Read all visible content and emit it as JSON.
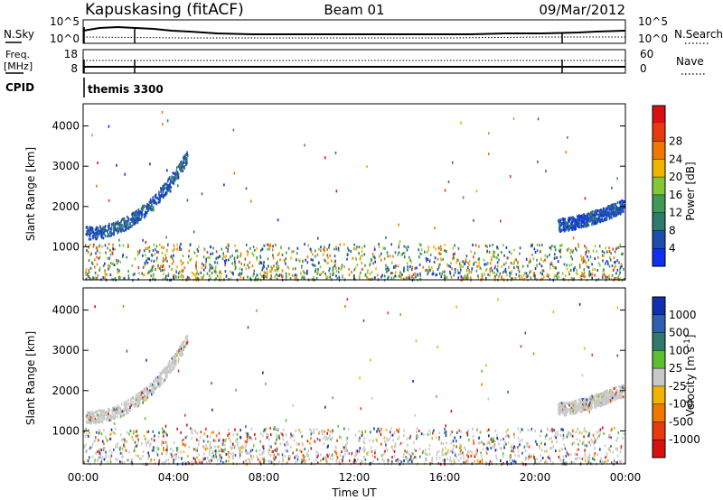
{
  "header": {
    "station": "Kapuskasing (fitACF)",
    "beam": "Beam 01",
    "date": "09/Mar/2012"
  },
  "summary_panels": {
    "noise": {
      "left_label": "N.Sky",
      "right_label": "N.Search",
      "left_ticks": [
        "10^5",
        "10^0"
      ],
      "right_ticks": [
        "10^5",
        "10^0"
      ]
    },
    "frequency": {
      "left_label_1": "Freq.",
      "left_label_2": "[MHz]",
      "left_ticks": [
        "18",
        "8"
      ],
      "right_label": "Nave",
      "right_ticks": [
        "60",
        "0"
      ]
    },
    "cpid": {
      "label": "CPID",
      "program": "themis 3300"
    }
  },
  "chart_data": [
    {
      "type": "heatmap",
      "title": "Power",
      "ylabel": "Slant Range [km]",
      "xlabel": "",
      "xlim": [
        0,
        24
      ],
      "ylim": [
        180,
        4550
      ],
      "ytick_labels": [
        "1000",
        "2000",
        "3000",
        "4000"
      ],
      "yticks": [
        1000,
        2000,
        3000,
        4000
      ],
      "colorbar": {
        "label": "Power [dB]",
        "range": [
          0,
          32
        ],
        "tick_labels": [
          "4",
          "8",
          "12",
          "16",
          "20",
          "24",
          "28"
        ],
        "tick_values": [
          4,
          8,
          12,
          16,
          20,
          24,
          28
        ],
        "colors": [
          "#1030f0",
          "#1f4fae",
          "#2f7a6c",
          "#3e9a54",
          "#86c63a",
          "#f0b400",
          "#f07800",
          "#e83a10",
          "#d81010"
        ]
      },
      "features": [
        {
          "name": "ionospheric_scatter_morning",
          "x_range": [
            0.1,
            4.6
          ],
          "slant_km_start": 1300,
          "slant_km_end": 3200,
          "typical_power_db": 6
        },
        {
          "name": "ionospheric_scatter_evening",
          "x_range": [
            21.0,
            24.0
          ],
          "slant_km_start": 1500,
          "slant_km_end": 2000,
          "typical_power_db": 5
        },
        {
          "name": "ground_scatter_band",
          "x_range": [
            0.0,
            24.0
          ],
          "slant_km_range": [
            200,
            1100
          ],
          "typical_power_db": 14
        }
      ]
    },
    {
      "type": "heatmap",
      "title": "Velocity",
      "ylabel": "Slant Range [km]",
      "xlabel": "Time UT",
      "xlim": [
        0,
        24
      ],
      "ylim": [
        180,
        4550
      ],
      "ytick_labels": [
        "1000",
        "2000",
        "3000",
        "4000"
      ],
      "yticks": [
        1000,
        2000,
        3000,
        4000
      ],
      "colorbar": {
        "label": "Velocity [m s^-1]",
        "tick_labels": [
          "1000",
          "500",
          "100",
          "25",
          "-25",
          "-100",
          "-500",
          "-1000"
        ],
        "colors": [
          "#1030b0",
          "#2f5fae",
          "#2f7a6c",
          "#5cc030",
          "#c8c8c8",
          "#f0b400",
          "#f07800",
          "#e83a10",
          "#d81010"
        ],
        "ground_scatter_color": "#c8c8c8"
      },
      "features": [
        {
          "name": "ground_scatter_morning",
          "x_range": [
            0.1,
            4.6
          ],
          "slant_km_start": 1300,
          "slant_km_end": 3200,
          "typical_velocity": 0
        },
        {
          "name": "ground_scatter_evening",
          "x_range": [
            21.0,
            24.0
          ],
          "slant_km_start": 1500,
          "slant_km_end": 2000,
          "typical_velocity": 0
        },
        {
          "name": "near_range_mixed",
          "x_range": [
            0.0,
            24.0
          ],
          "slant_km_range": [
            200,
            1100
          ],
          "typical_velocity": 0
        }
      ]
    }
  ],
  "time_axis": {
    "label": "Time UT",
    "tick_labels": [
      "00:00",
      "04:00",
      "08:00",
      "12:00",
      "16:00",
      "20:00",
      "00:00"
    ],
    "tick_values": [
      0,
      4,
      8,
      12,
      16,
      20,
      24
    ]
  }
}
